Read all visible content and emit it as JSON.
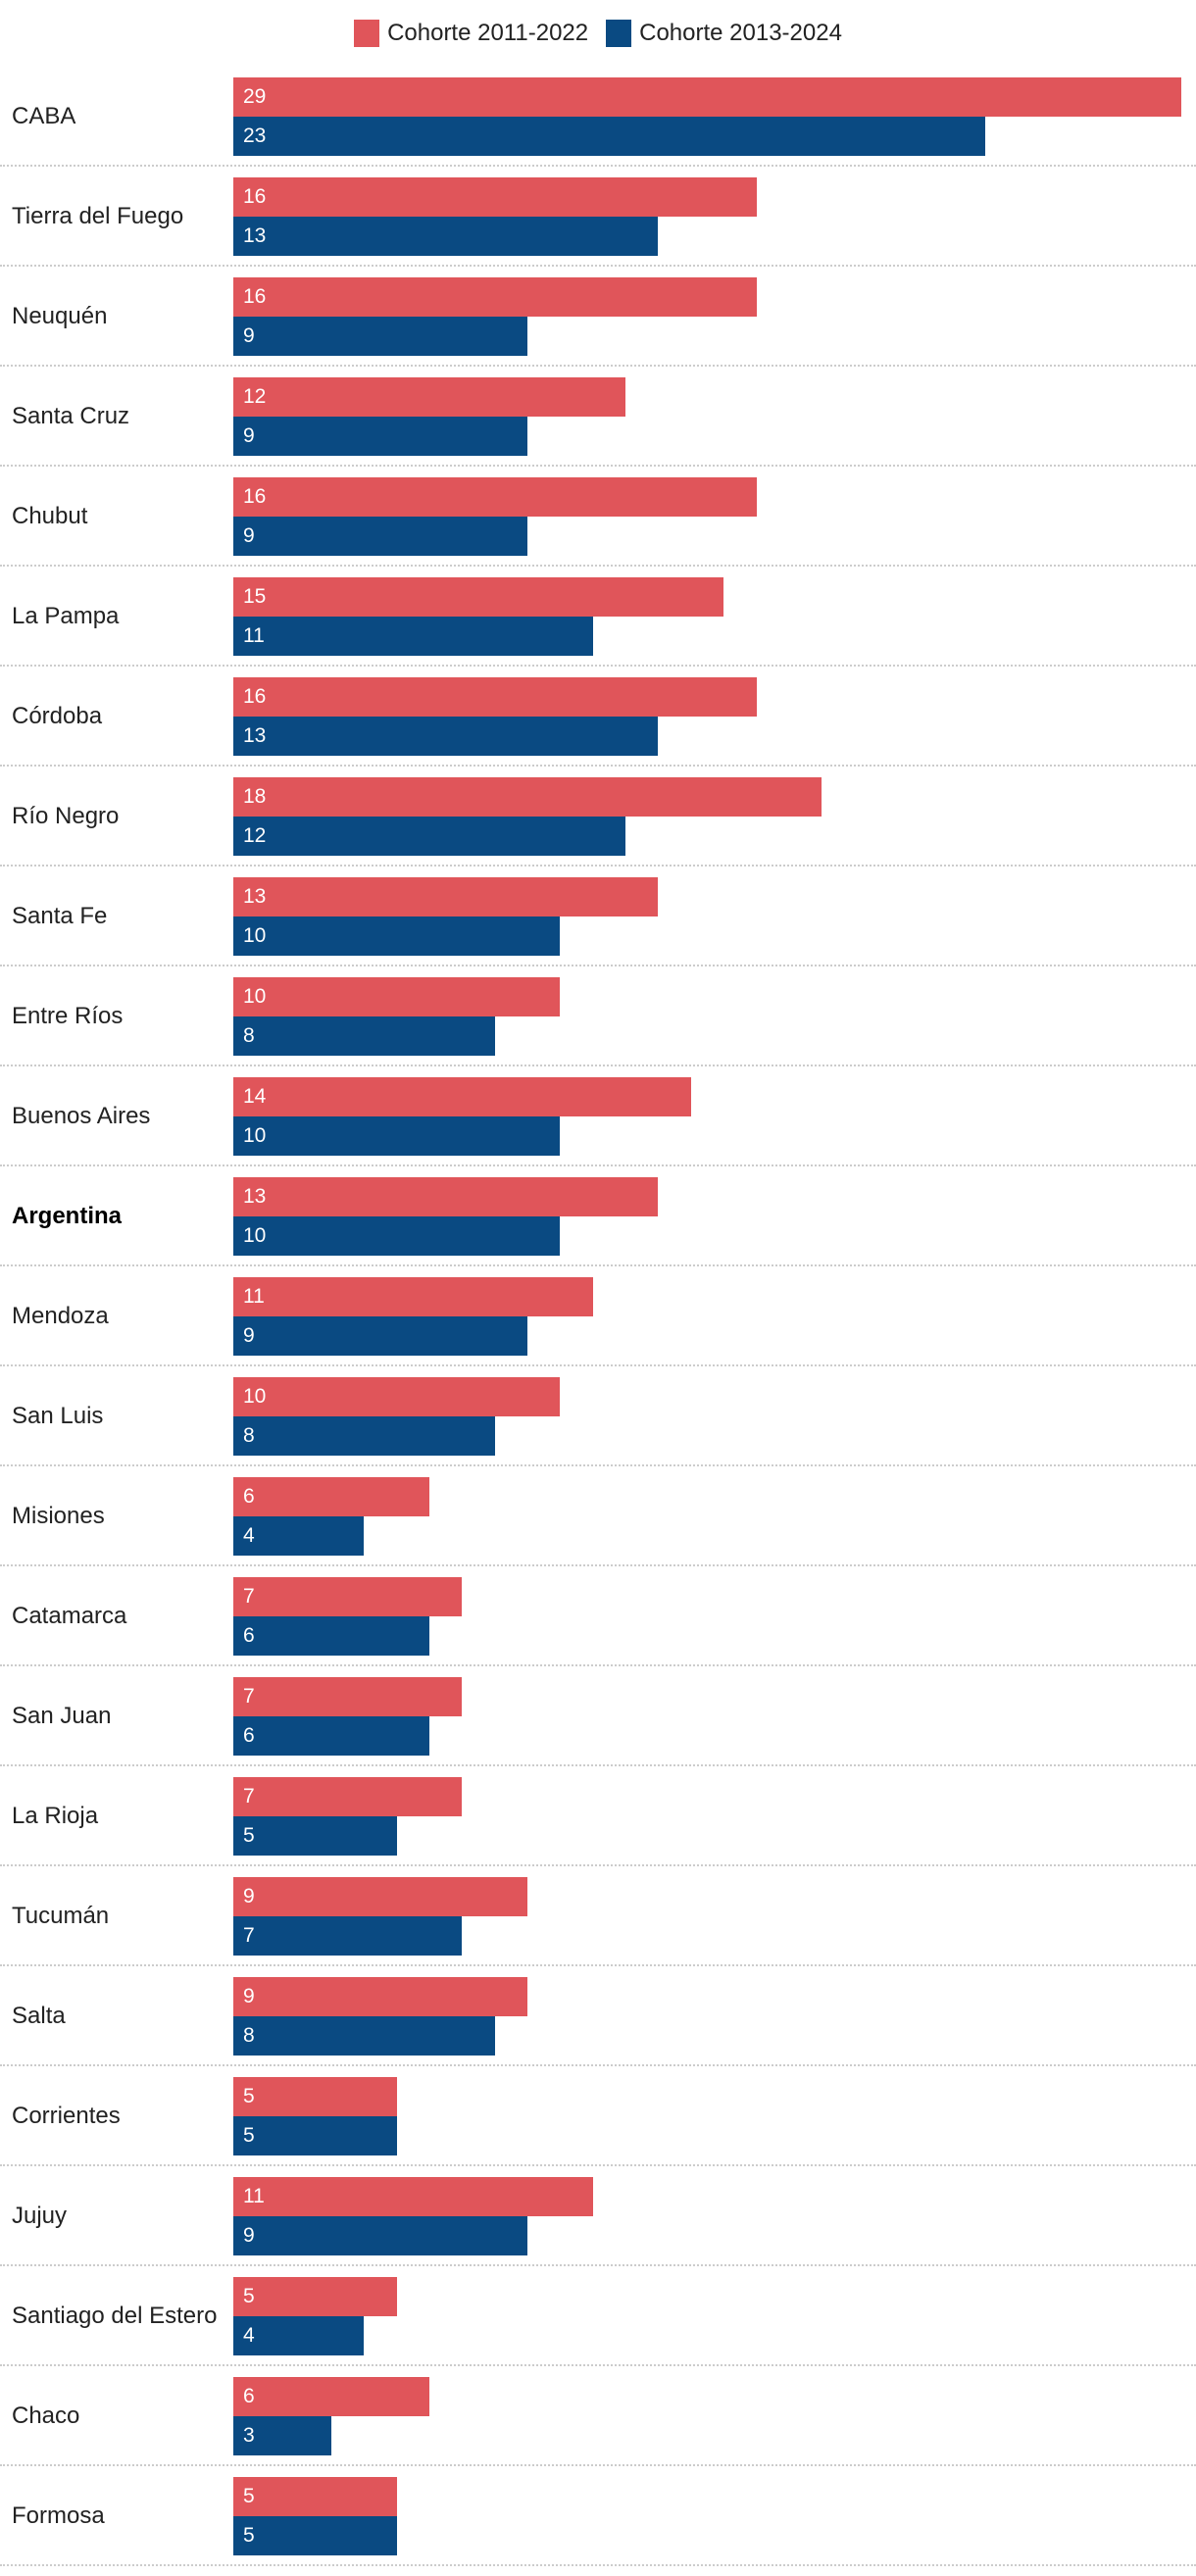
{
  "colors": {
    "series1": "#E0555A",
    "series2": "#0A4A82"
  },
  "chart_data": {
    "type": "bar",
    "orientation": "horizontal",
    "title": "",
    "xlabel": "",
    "ylabel": "",
    "xlim": [
      0,
      29
    ],
    "grid": false,
    "legend_position": "top-center",
    "categories": [
      "CABA",
      "Tierra del Fuego",
      "Neuquén",
      "Santa Cruz",
      "Chubut",
      "La Pampa",
      "Córdoba",
      "Río Negro",
      "Santa Fe",
      "Entre Ríos",
      "Buenos Aires",
      "Argentina",
      "Mendoza",
      "San Luis",
      "Misiones",
      "Catamarca",
      "San Juan",
      "La Rioja",
      "Tucumán",
      "Salta",
      "Corrientes",
      "Jujuy",
      "Santiago del Estero",
      "Chaco",
      "Formosa"
    ],
    "highlight": [
      "Argentina"
    ],
    "series": [
      {
        "name": "Cohorte 2011-2022",
        "values": [
          29,
          16,
          16,
          12,
          16,
          15,
          16,
          18,
          13,
          10,
          14,
          13,
          11,
          10,
          6,
          7,
          7,
          7,
          9,
          9,
          5,
          11,
          5,
          6,
          5
        ]
      },
      {
        "name": "Cohorte 2013-2024",
        "values": [
          23,
          13,
          9,
          9,
          9,
          11,
          13,
          12,
          10,
          8,
          10,
          10,
          9,
          8,
          4,
          6,
          6,
          5,
          7,
          8,
          5,
          9,
          4,
          3,
          5
        ]
      }
    ]
  }
}
